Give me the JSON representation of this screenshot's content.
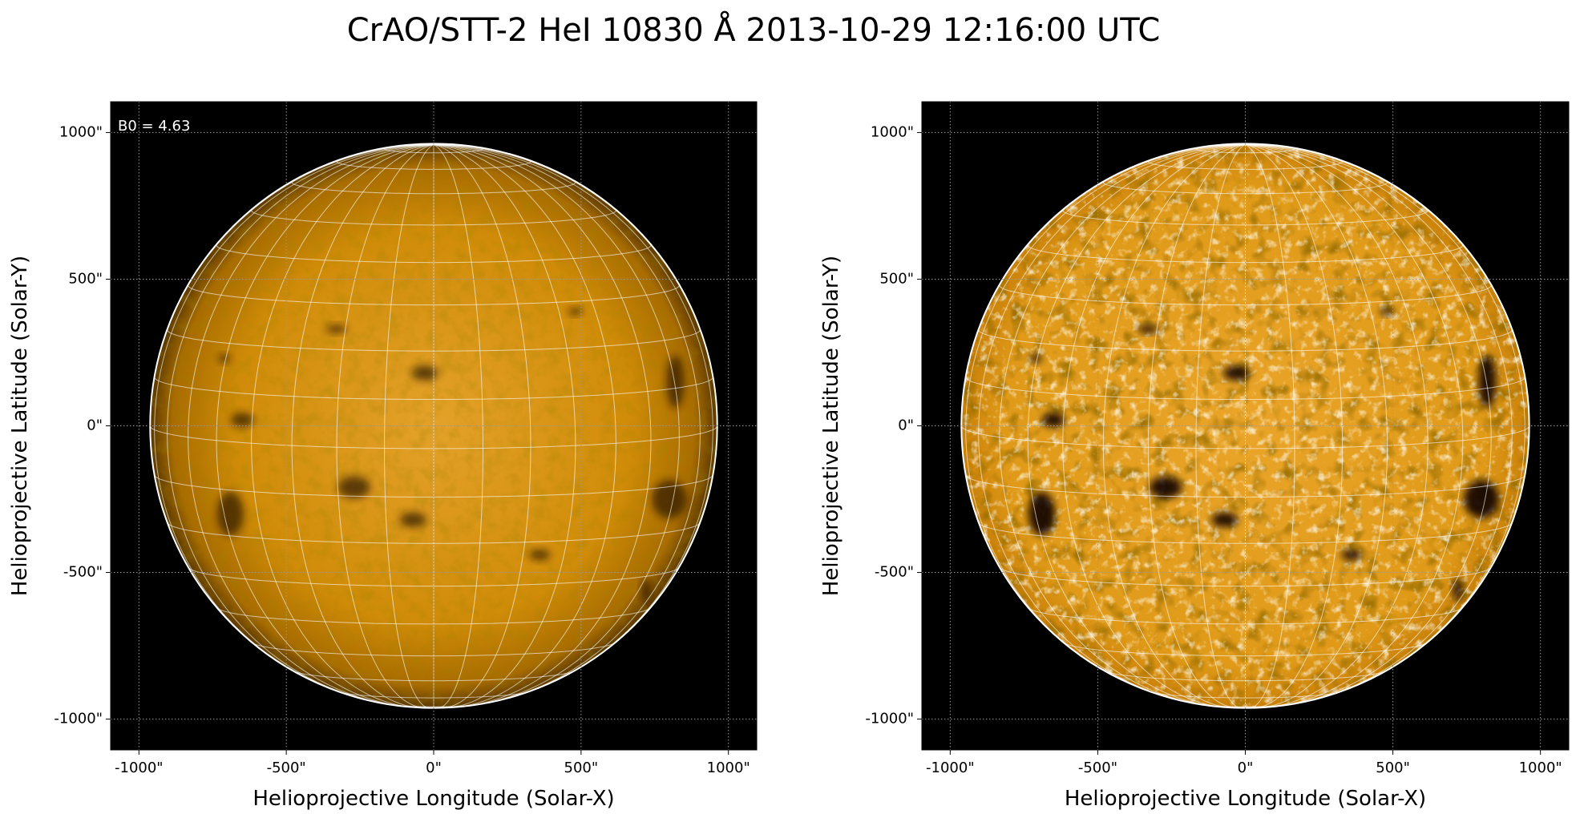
{
  "title": "CrAO/STT-2 HeI 10830 Å 2013-10-29 12:16:00 UTC",
  "chart_data": [
    {
      "type": "image",
      "xlabel": "Helioprojective Longitude (Solar-X)",
      "ylabel": "Helioprojective Latitude (Solar-Y)",
      "xlim": [
        -1096,
        1096
      ],
      "ylim": [
        -1105,
        1105
      ],
      "xticks": [
        {
          "value": -1000,
          "label": "-1000\""
        },
        {
          "value": -500,
          "label": "-500\""
        },
        {
          "value": 0,
          "label": "0\""
        },
        {
          "value": 500,
          "label": "500\""
        },
        {
          "value": 1000,
          "label": "1000\""
        }
      ],
      "yticks": [
        {
          "value": -1000,
          "label": "-1000\""
        },
        {
          "value": -500,
          "label": "-500\""
        },
        {
          "value": 0,
          "label": "0\""
        },
        {
          "value": 500,
          "label": "500\""
        },
        {
          "value": 1000,
          "label": "1000\""
        }
      ],
      "limb_radius": 962,
      "annotation": {
        "value": 4.63,
        "label": "B0 = 4.63"
      }
    },
    {
      "type": "image",
      "xlabel": "Helioprojective Longitude (Solar-X)",
      "ylabel": "Helioprojective Latitude (Solar-Y)",
      "xlim": [
        -1096,
        1096
      ],
      "ylim": [
        -1105,
        1105
      ],
      "xticks": [
        {
          "value": -1000,
          "label": "-1000\""
        },
        {
          "value": -500,
          "label": "-500\""
        },
        {
          "value": 0,
          "label": "0\""
        },
        {
          "value": 500,
          "label": "500\""
        },
        {
          "value": 1000,
          "label": "1000\""
        }
      ],
      "yticks": [
        {
          "value": -1000,
          "label": "-1000\""
        },
        {
          "value": -500,
          "label": "-500\""
        },
        {
          "value": 0,
          "label": "0\""
        },
        {
          "value": 500,
          "label": "500\""
        },
        {
          "value": 1000,
          "label": "1000\""
        }
      ],
      "limb_radius": 962
    }
  ]
}
